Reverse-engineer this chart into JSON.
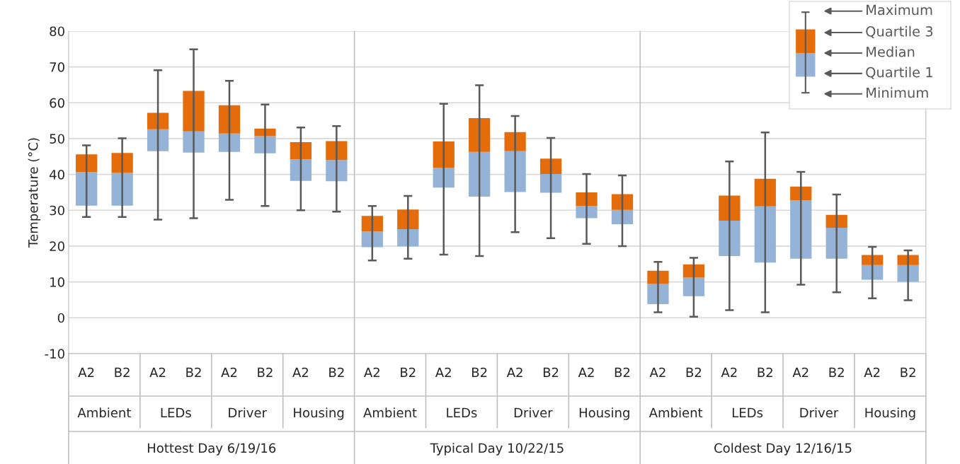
{
  "chart_data": {
    "type": "box",
    "ylabel": "Temperature (°C)",
    "categories": [
      "A2",
      "B2",
      "A2",
      "B2",
      "A2",
      "B2",
      "A2",
      "B2",
      "A2",
      "B2",
      "A2",
      "B2",
      "A2",
      "B2",
      "A2",
      "B2",
      "A2",
      "B2",
      "A2",
      "B2",
      "A2",
      "B2",
      "A2",
      "B2"
    ],
    "series": [
      {
        "color": "#e46c0a",
        "colors": [
          "#95b3d7",
          "#95b3d7",
          "#95b3d7",
          "#95b3d7",
          "#95b3d7",
          "#95b3d7",
          "#95b3d7",
          "#95b3d7",
          "#95b3d7",
          "#95b3d7",
          "#95b3d7",
          "#95b3d7",
          "#95b3d7",
          "#95b3d7",
          "#95b3d7",
          "#95b3d7",
          "#95b3d7",
          "#95b3d7",
          "#95b3d7",
          "#95b3d7",
          "#95b3d7",
          "#95b3d7",
          "#95b3d7",
          "#95b3d7"
        ],
        "boxes": [
          {
            "low": 28.1,
            "q1": 31.3,
            "median": 40.7,
            "q3": 45.6,
            "high": 48.1
          },
          {
            "low": 28.1,
            "q1": 31.3,
            "median": 40.4,
            "q3": 46.0,
            "high": 50.1
          },
          {
            "low": 27.4,
            "q1": 46.5,
            "median": 52.6,
            "q3": 57.2,
            "high": 69.1
          },
          {
            "low": 27.8,
            "q1": 46.1,
            "median": 52.0,
            "q3": 63.3,
            "high": 74.9
          },
          {
            "low": 32.9,
            "q1": 46.3,
            "median": 51.4,
            "q3": 59.3,
            "high": 66.1
          },
          {
            "low": 31.2,
            "q1": 45.9,
            "median": 50.7,
            "q3": 52.8,
            "high": 59.5
          },
          {
            "low": 30.0,
            "q1": 38.2,
            "median": 44.2,
            "q3": 49.0,
            "high": 53.1
          },
          {
            "low": 29.6,
            "q1": 38.1,
            "median": 44.0,
            "q3": 49.3,
            "high": 53.5
          },
          {
            "low": 16.0,
            "q1": 19.7,
            "median": 24.1,
            "q3": 28.4,
            "high": 31.2
          },
          {
            "low": 16.5,
            "q1": 19.9,
            "median": 24.7,
            "q3": 30.2,
            "high": 34.0
          },
          {
            "low": 17.6,
            "q1": 36.3,
            "median": 41.9,
            "q3": 49.2,
            "high": 59.7
          },
          {
            "low": 17.2,
            "q1": 33.8,
            "median": 46.3,
            "q3": 55.7,
            "high": 64.9
          },
          {
            "low": 23.9,
            "q1": 35.1,
            "median": 46.5,
            "q3": 51.8,
            "high": 56.3
          },
          {
            "low": 22.2,
            "q1": 34.9,
            "median": 40.1,
            "q3": 44.4,
            "high": 50.2
          },
          {
            "low": 20.6,
            "q1": 27.8,
            "median": 31.2,
            "q3": 35.0,
            "high": 40.1
          },
          {
            "low": 20.0,
            "q1": 26.1,
            "median": 30.1,
            "q3": 34.5,
            "high": 39.7
          },
          {
            "low": 1.5,
            "q1": 3.8,
            "median": 9.4,
            "q3": 13.1,
            "high": 15.6
          },
          {
            "low": 0.3,
            "q1": 6.0,
            "median": 11.2,
            "q3": 14.9,
            "high": 16.7
          },
          {
            "low": 2.1,
            "q1": 17.2,
            "median": 27.1,
            "q3": 34.1,
            "high": 43.6
          },
          {
            "low": 1.5,
            "q1": 15.4,
            "median": 31.1,
            "q3": 38.8,
            "high": 51.7
          },
          {
            "low": 9.2,
            "q1": 16.5,
            "median": 32.8,
            "q3": 36.6,
            "high": 40.7
          },
          {
            "low": 7.1,
            "q1": 16.5,
            "median": 25.1,
            "q3": 28.7,
            "high": 34.4
          },
          {
            "low": 5.4,
            "q1": 10.6,
            "median": 14.7,
            "q3": 17.5,
            "high": 19.8
          },
          {
            "low": 4.9,
            "q1": 10.0,
            "median": 14.7,
            "q3": 17.5,
            "high": 18.8
          }
        ]
      }
    ],
    "ylim": [
      -10,
      80
    ],
    "yticks": [
      -10,
      0,
      10,
      20,
      30,
      40,
      50,
      60,
      70,
      80
    ],
    "grid": "y",
    "annotations": [
      "Maximum",
      "Quartile 3",
      "Median",
      "Quartile 1",
      "Minimum",
      "Ambient",
      "LEDs",
      "Driver",
      "Housing",
      "Ambient",
      "LEDs",
      "Driver",
      "Housing",
      "Ambient",
      "LEDs",
      "Driver",
      "Housing",
      "Hottest Day 6/19/16",
      "Typical Day 10/22/15",
      "Coldest Day 12/16/15"
    ]
  }
}
